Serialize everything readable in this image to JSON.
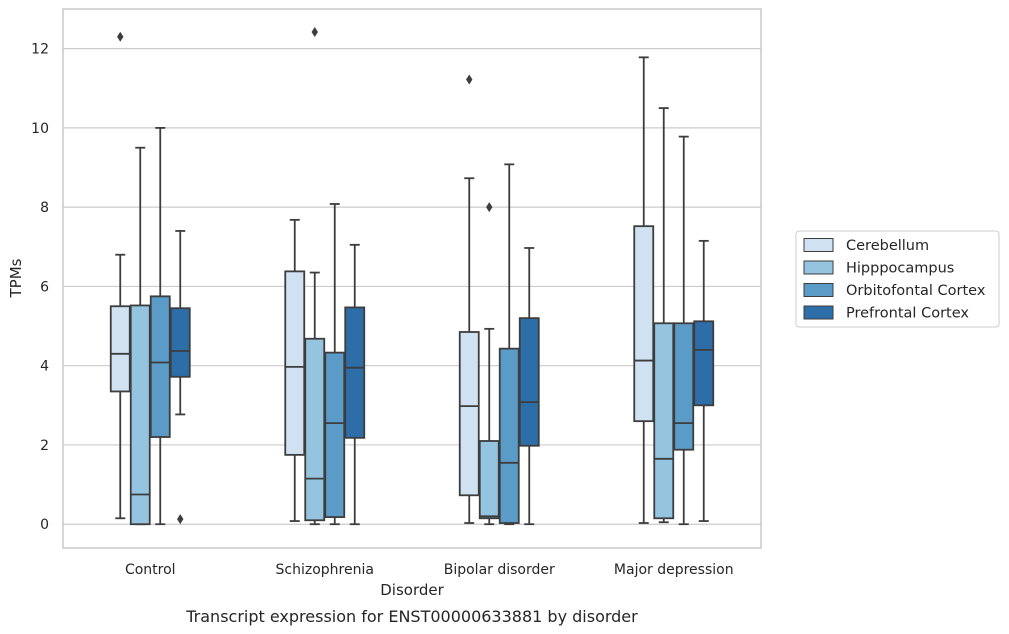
{
  "chart_data": {
    "type": "box",
    "xlabel": "Disorder",
    "ylabel": "TPMs",
    "caption": "Transcript expression for ENST00000633881 by disorder",
    "ylim": [
      -0.6,
      13
    ],
    "yticks": [
      0,
      2,
      4,
      6,
      8,
      10,
      12
    ],
    "grid": "horizontal",
    "legend_position": "right",
    "categories": [
      "Control",
      "Schizophrenia",
      "Bipolar disorder",
      "Major depression"
    ],
    "series": [
      {
        "name": "Cerebellum",
        "color": "#d0e1f2",
        "boxes": [
          {
            "whislo": 0.15,
            "q1": 3.35,
            "med": 4.3,
            "q3": 5.5,
            "whishi": 6.8,
            "fliers": [
              12.3
            ]
          },
          {
            "whislo": 0.08,
            "q1": 1.75,
            "med": 3.97,
            "q3": 6.38,
            "whishi": 7.68,
            "fliers": []
          },
          {
            "whislo": 0.03,
            "q1": 0.73,
            "med": 2.98,
            "q3": 4.85,
            "whishi": 8.73,
            "fliers": [
              11.22
            ]
          },
          {
            "whislo": 0.03,
            "q1": 2.6,
            "med": 4.13,
            "q3": 7.52,
            "whishi": 11.78,
            "fliers": []
          }
        ]
      },
      {
        "name": "Hipppocampus",
        "color": "#94c4df",
        "boxes": [
          {
            "whislo": 0.0,
            "q1": 0.0,
            "med": 0.75,
            "q3": 5.52,
            "whishi": 9.5,
            "fliers": []
          },
          {
            "whislo": 0.0,
            "q1": 0.1,
            "med": 1.15,
            "q3": 4.68,
            "whishi": 6.35,
            "fliers": [
              12.42
            ]
          },
          {
            "whislo": 0.0,
            "q1": 0.15,
            "med": 0.2,
            "q3": 2.1,
            "whishi": 4.93,
            "fliers": [
              8.0
            ]
          },
          {
            "whislo": 0.05,
            "q1": 0.15,
            "med": 1.65,
            "q3": 5.07,
            "whishi": 10.5,
            "fliers": []
          }
        ]
      },
      {
        "name": "Orbitofontal Cortex",
        "color": "#5b9bc8",
        "boxes": [
          {
            "whislo": 0.0,
            "q1": 2.2,
            "med": 4.08,
            "q3": 5.75,
            "whishi": 10.0,
            "fliers": []
          },
          {
            "whislo": 0.0,
            "q1": 0.18,
            "med": 2.55,
            "q3": 4.33,
            "whishi": 8.08,
            "fliers": []
          },
          {
            "whislo": 0.0,
            "q1": 0.03,
            "med": 1.55,
            "q3": 4.43,
            "whishi": 9.08,
            "fliers": []
          },
          {
            "whislo": 0.0,
            "q1": 1.88,
            "med": 2.55,
            "q3": 5.07,
            "whishi": 9.78,
            "fliers": []
          }
        ]
      },
      {
        "name": "Prefrontal Cortex",
        "color": "#2d6da8",
        "boxes": [
          {
            "whislo": 2.77,
            "q1": 3.72,
            "med": 4.37,
            "q3": 5.45,
            "whishi": 7.4,
            "fliers": [
              0.13
            ]
          },
          {
            "whislo": 0.0,
            "q1": 2.18,
            "med": 3.95,
            "q3": 5.47,
            "whishi": 7.05,
            "fliers": []
          },
          {
            "whislo": 0.0,
            "q1": 1.98,
            "med": 3.08,
            "q3": 5.2,
            "whishi": 6.97,
            "fliers": []
          },
          {
            "whislo": 0.08,
            "q1": 3.0,
            "med": 4.4,
            "q3": 5.12,
            "whishi": 7.15,
            "fliers": []
          }
        ]
      }
    ]
  }
}
